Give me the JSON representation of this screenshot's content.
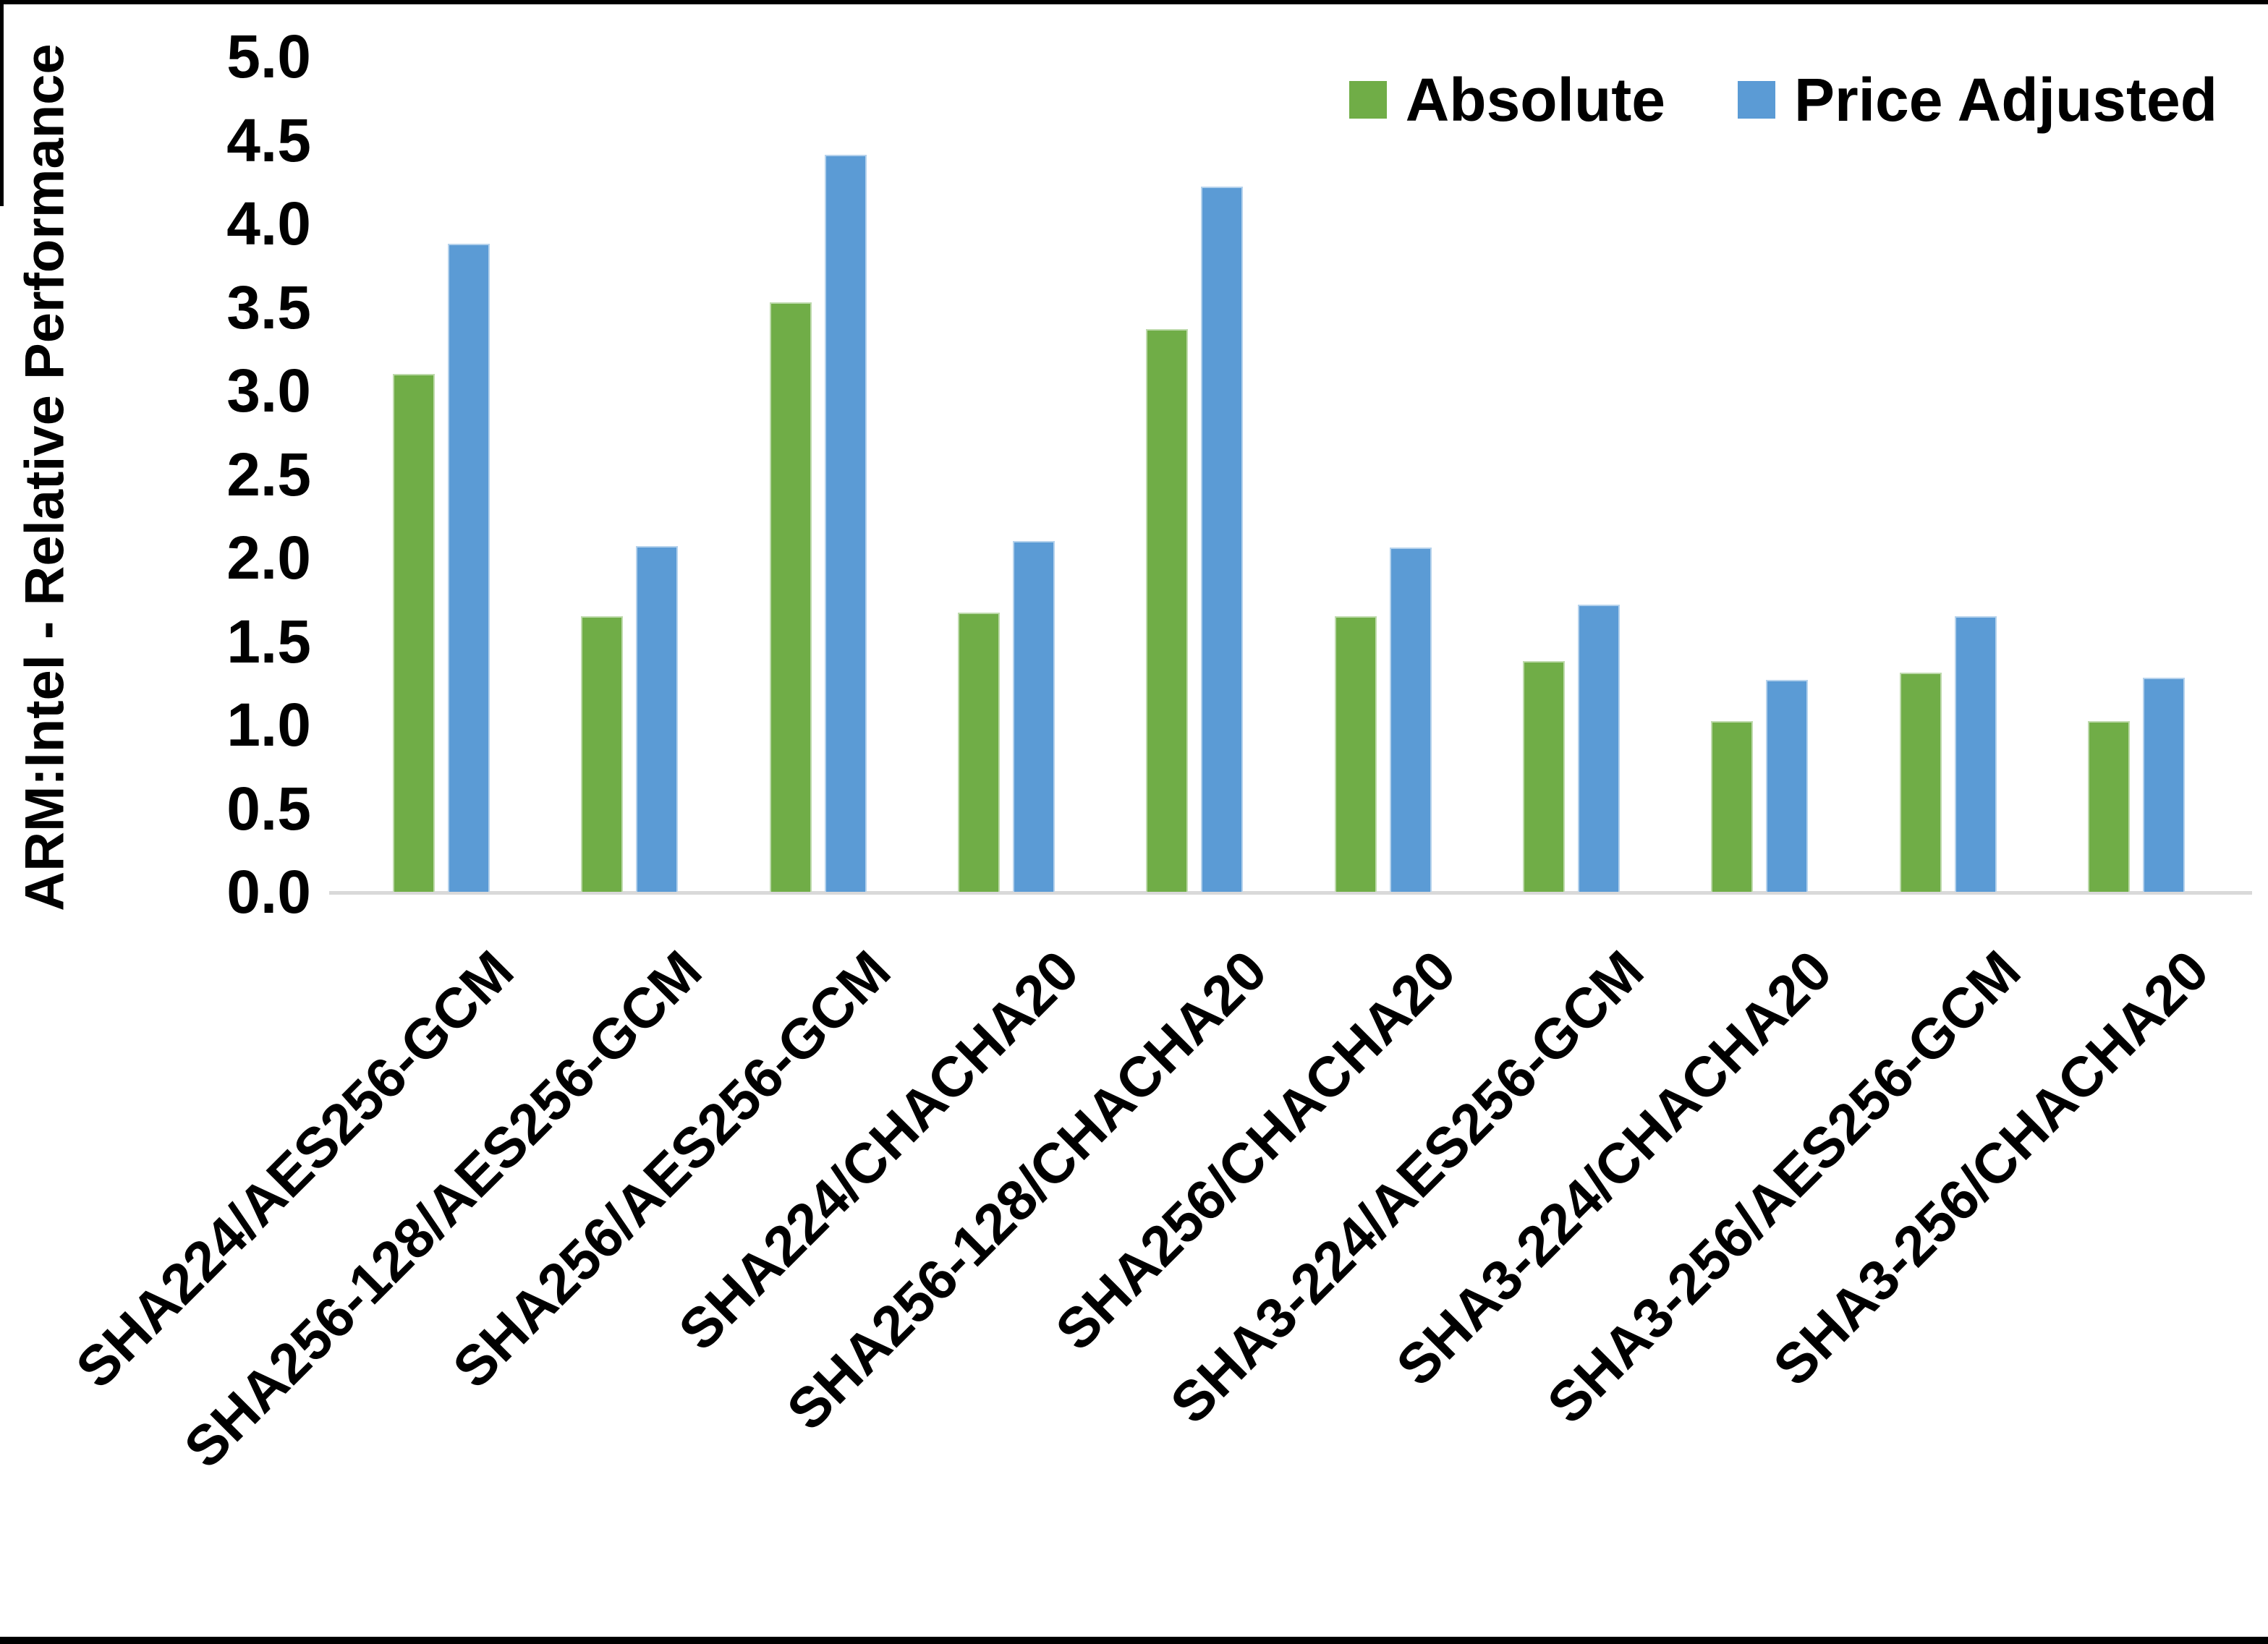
{
  "chart_data": {
    "type": "bar",
    "title": "",
    "xlabel": "",
    "ylabel": "ARM:Intel - Relative Performance",
    "ylim": [
      0,
      5
    ],
    "ytick_step": 0.5,
    "ytick_labels": [
      "0.0",
      "0.5",
      "1.0",
      "1.5",
      "2.0",
      "2.5",
      "3.0",
      "3.5",
      "4.0",
      "4.5",
      "5.0"
    ],
    "grid": false,
    "legend_position": "top-right",
    "categories": [
      "SHA224/AES256-GCM",
      "SHA256-128/AES256-GCM",
      "SHA256/AES256-GCM",
      "SHA224/CHACHA20",
      "SHA256-128/CHACHA20",
      "SHA256/CHACHA20",
      "SHA3-224/AES256-GCM",
      "SHA3-224/CHACHA20",
      "SHA3-256/AES256-GCM",
      "SHA3-256/CHACHA20"
    ],
    "series": [
      {
        "name": "Absolute",
        "color": "#70AD47",
        "values": [
          3.1,
          1.65,
          3.53,
          1.67,
          3.37,
          1.65,
          1.38,
          1.02,
          1.31,
          1.02
        ]
      },
      {
        "name": "Price Adjusted",
        "color": "#5B9BD5",
        "values": [
          3.88,
          2.07,
          4.41,
          2.1,
          4.22,
          2.06,
          1.72,
          1.27,
          1.65,
          1.28
        ]
      }
    ],
    "axis_color": "#d9d9d9",
    "text_color": "#000000"
  }
}
